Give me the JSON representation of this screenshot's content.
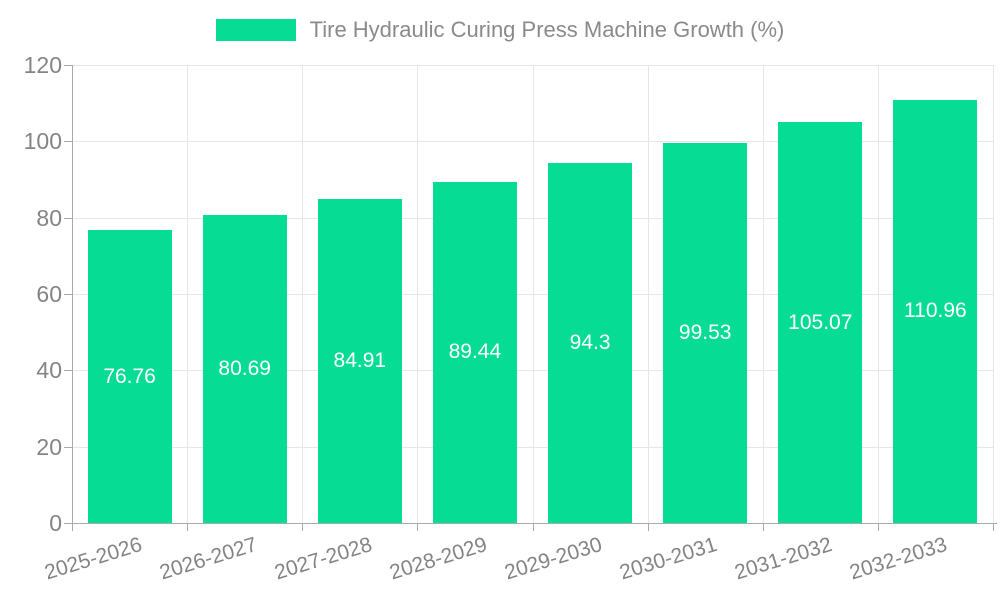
{
  "chart_data": {
    "type": "bar",
    "title": "Tire Hydraulic Curing Press Machine Growth (%)",
    "categories": [
      "2025-2026",
      "2026-2027",
      "2027-2028",
      "2028-2029",
      "2029-2030",
      "2030-2031",
      "2031-2032",
      "2032-2033"
    ],
    "values": [
      76.76,
      80.69,
      84.91,
      89.44,
      94.3,
      99.53,
      105.07,
      110.96
    ],
    "value_labels": [
      "76.76",
      "80.69",
      "84.91",
      "89.44",
      "94.3",
      "99.53",
      "105.07",
      "110.96"
    ],
    "xlabel": "",
    "ylabel": "",
    "ylim": [
      0,
      120
    ],
    "yticks": [
      0,
      20,
      40,
      60,
      80,
      100,
      120
    ],
    "grid": true,
    "legend_position": "top",
    "colors": {
      "bar": "#06dc93",
      "value_label": "#ffffff",
      "grid_line": "#e6e6e6",
      "axis_line": "#aaaaaa",
      "tick_label": "#848484",
      "legend_text": "#8a8a8a",
      "background": "#ffffff"
    }
  }
}
